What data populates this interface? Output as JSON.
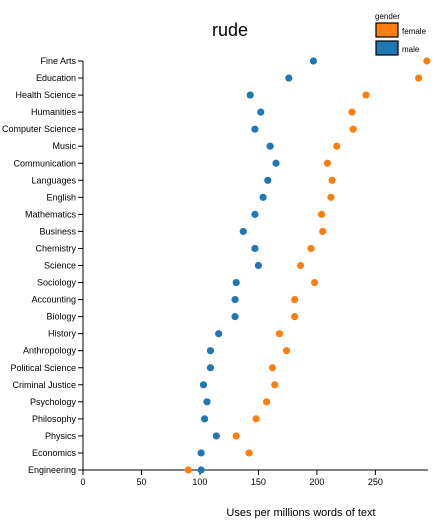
{
  "chart_data": {
    "type": "scatter",
    "title": "rude",
    "xlabel": "Uses per millions words of text",
    "ylabel": "",
    "xlim": [
      0,
      295
    ],
    "xticks": [
      0,
      50,
      100,
      150,
      200,
      250
    ],
    "grid": false,
    "legend": {
      "title": "gender",
      "position": "top-right",
      "entries": [
        {
          "name": "female",
          "color": "#ff7f0e"
        },
        {
          "name": "male",
          "color": "#1f77b4"
        }
      ]
    },
    "categories": [
      "Fine Arts",
      "Education",
      "Health Science",
      "Humanities",
      "Computer Science",
      "Music",
      "Communication",
      "Languages",
      "English",
      "Mathematics",
      "Business",
      "Chemistry",
      "Science",
      "Sociology",
      "Accounting",
      "Biology",
      "History",
      "Anthropology",
      "Political Science",
      "Criminal Justice",
      "Psychology",
      "Philosophy",
      "Physics",
      "Economics",
      "Engineering"
    ],
    "series": [
      {
        "name": "female",
        "color": "#ff7f0e",
        "values": [
          294,
          287,
          242,
          230,
          231,
          217,
          209,
          213,
          212,
          204,
          205,
          195,
          186,
          198,
          181,
          181,
          168,
          174,
          162,
          164,
          157,
          148,
          131,
          142,
          90
        ]
      },
      {
        "name": "male",
        "color": "#1f77b4",
        "values": [
          197,
          176,
          143,
          152,
          147,
          160,
          165,
          158,
          154,
          147,
          137,
          147,
          150,
          131,
          130,
          130,
          116,
          109,
          109,
          103,
          106,
          104,
          114,
          101,
          101
        ]
      }
    ]
  }
}
